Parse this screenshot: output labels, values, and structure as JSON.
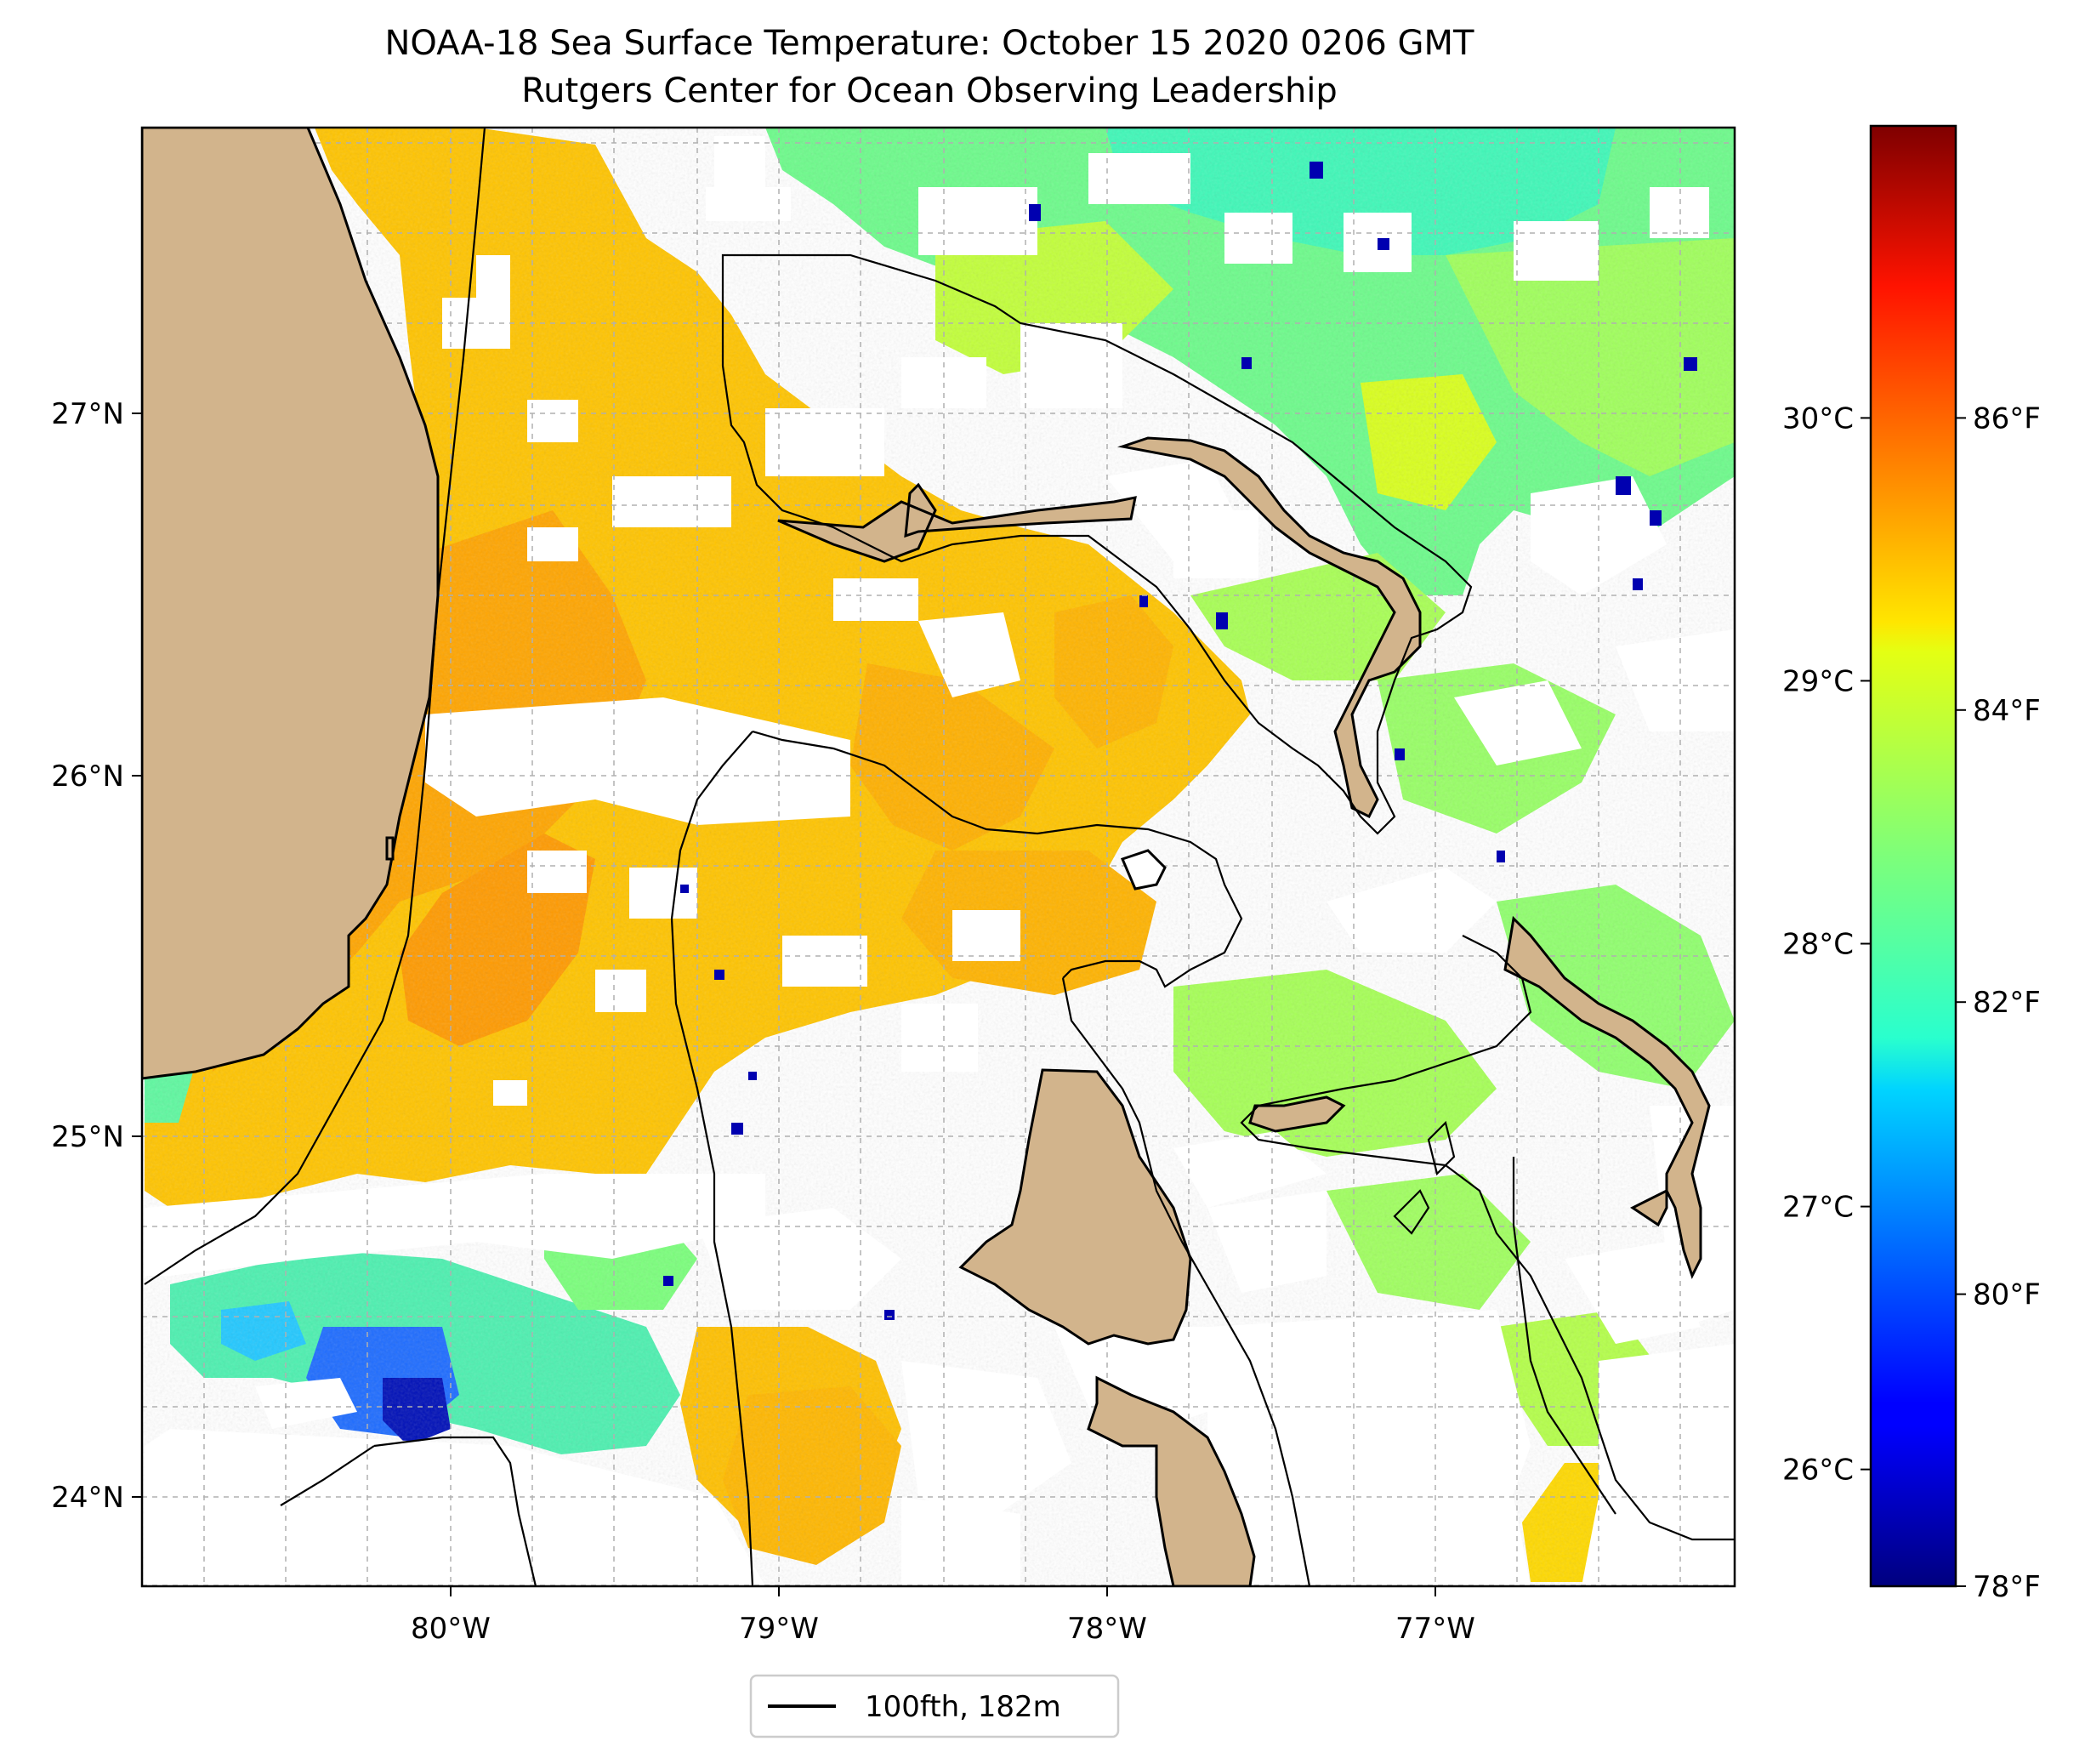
{
  "title_line1": "NOAA-18 Sea Surface Temperature: October 15 2020 0206 GMT",
  "title_line2": "Rutgers Center for Ocean Observing Leadership",
  "map": {
    "lon_range": [
      -80.95,
      -76.1
    ],
    "lat_range": [
      23.75,
      27.8
    ],
    "gridlines": true,
    "land_color": "#d2b48c",
    "lon_ticks": [
      {
        "value": -80,
        "label": "80°W"
      },
      {
        "value": -79,
        "label": "79°W"
      },
      {
        "value": -78,
        "label": "78°W"
      },
      {
        "value": -77,
        "label": "77°W"
      }
    ],
    "lat_ticks": [
      {
        "value": 24,
        "label": "24°N"
      },
      {
        "value": 25,
        "label": "25°N"
      },
      {
        "value": 26,
        "label": "26°N"
      },
      {
        "value": 27,
        "label": "27°N"
      }
    ]
  },
  "colorbar": {
    "colormap": "jet",
    "f_range": [
      78,
      88
    ],
    "celsius_ticks": [
      {
        "value": 26,
        "label": "26°C"
      },
      {
        "value": 27,
        "label": "27°C"
      },
      {
        "value": 28,
        "label": "28°C"
      },
      {
        "value": 29,
        "label": "29°C"
      },
      {
        "value": 30,
        "label": "30°C"
      }
    ],
    "fahrenheit_ticks": [
      {
        "value": 78,
        "label": "78°F"
      },
      {
        "value": 80,
        "label": "80°F"
      },
      {
        "value": 82,
        "label": "82°F"
      },
      {
        "value": 84,
        "label": "84°F"
      },
      {
        "value": 86,
        "label": "86°F"
      }
    ]
  },
  "legend": {
    "entry": "100fth, 182m",
    "line_color": "#000000"
  }
}
